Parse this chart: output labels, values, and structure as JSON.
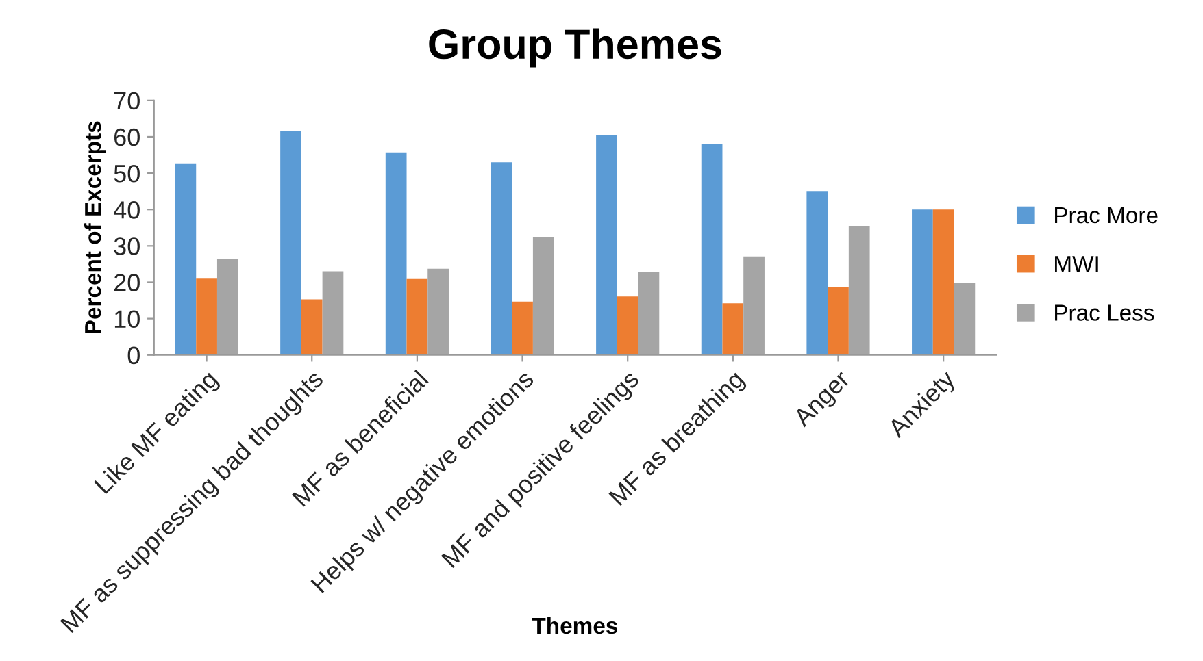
{
  "chart_data": {
    "type": "bar",
    "title": "Group Themes",
    "xlabel": "Themes",
    "ylabel": "Percent of Excerpts",
    "categories": [
      "Like MF eating",
      "MF as suppressing bad thoughts",
      "MF as beneficial",
      "Helps w/ negative emotions",
      "MF and positive feelings",
      "MF as breathing",
      "Anger",
      "Anxiety"
    ],
    "series": [
      {
        "name": "Prac More",
        "color": "#5b9bd5",
        "values": [
          52.7,
          61.6,
          55.7,
          53.0,
          60.4,
          58.1,
          45.1,
          40.0
        ]
      },
      {
        "name": "MWI",
        "color": "#ed7d31",
        "values": [
          21.0,
          15.3,
          20.9,
          14.7,
          16.1,
          14.2,
          18.7,
          40.0
        ]
      },
      {
        "name": "Prac Less",
        "color": "#a5a5a5",
        "values": [
          26.3,
          23.0,
          23.7,
          32.4,
          22.8,
          27.1,
          35.4,
          19.7
        ]
      }
    ],
    "ylim": [
      0,
      70
    ],
    "yticks": [
      0,
      10,
      20,
      30,
      40,
      50,
      60,
      70
    ],
    "grid": false,
    "legend": "right"
  }
}
